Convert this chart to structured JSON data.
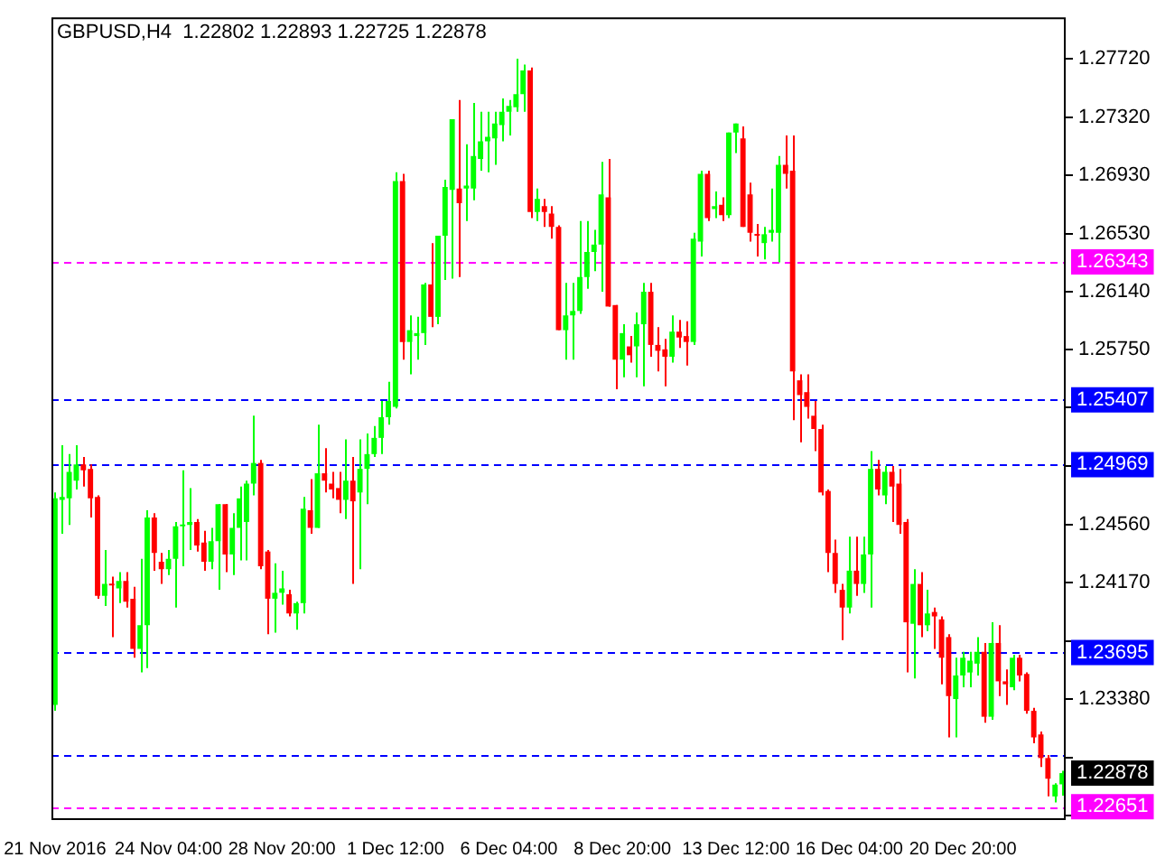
{
  "chart_data": {
    "type": "candlestick",
    "title": "GBPUSD,H4  1.22802 1.22893 1.22725 1.22878",
    "categories": [
      "21 Nov 2016",
      null,
      null,
      null,
      null,
      null,
      null,
      null,
      null,
      null,
      null,
      null,
      null,
      null,
      null,
      null,
      "24 Nov 04:00",
      null,
      null,
      null,
      null,
      null,
      null,
      null,
      null,
      null,
      null,
      null,
      null,
      null,
      null,
      null,
      "28 Nov 20:00",
      null,
      null,
      null,
      null,
      null,
      null,
      null,
      null,
      null,
      null,
      null,
      null,
      null,
      null,
      null,
      "1 Dec 12:00",
      null,
      null,
      null,
      null,
      null,
      null,
      null,
      null,
      null,
      null,
      null,
      null,
      null,
      null,
      null,
      "6 Dec 04:00",
      null,
      null,
      null,
      null,
      null,
      null,
      null,
      null,
      null,
      null,
      null,
      null,
      null,
      null,
      null,
      "8 Dec 20:00",
      null,
      null,
      null,
      null,
      null,
      null,
      null,
      null,
      null,
      null,
      null,
      null,
      null,
      null,
      null,
      "13 Dec 12:00",
      null,
      null,
      null,
      null,
      null,
      null,
      null,
      null,
      null,
      null,
      null,
      null,
      null,
      null,
      null,
      "16 Dec 04:00",
      null,
      null,
      null,
      null,
      null,
      null,
      null,
      null,
      null,
      null,
      null,
      null,
      null,
      null,
      null,
      "20 Dec 20:00",
      null,
      null,
      null,
      null,
      null,
      null,
      null,
      null,
      null,
      null,
      null,
      null,
      null,
      null
    ],
    "ohlc": [
      [
        1.2334,
        1.2478,
        1.233,
        1.2474
      ],
      [
        1.2473,
        1.251,
        1.245,
        1.2475
      ],
      [
        1.2474,
        1.2504,
        1.2456,
        1.2492
      ],
      [
        1.2486,
        1.251,
        1.248,
        1.2497
      ],
      [
        1.2497,
        1.2502,
        1.2482,
        1.2493
      ],
      [
        1.2494,
        1.2497,
        1.2461,
        1.2474
      ],
      [
        1.2475,
        1.2476,
        1.2406,
        1.2408
      ],
      [
        1.2408,
        1.2439,
        1.2401,
        1.2416
      ],
      [
        1.2416,
        1.2421,
        1.238,
        1.2415
      ],
      [
        1.2413,
        1.2424,
        1.2403,
        1.2418
      ],
      [
        1.2418,
        1.2424,
        1.24,
        1.2404
      ],
      [
        1.2406,
        1.2414,
        1.2366,
        1.2372
      ],
      [
        1.2372,
        1.2433,
        1.2356,
        1.2388
      ],
      [
        1.2388,
        1.2466,
        1.2359,
        1.2461
      ],
      [
        1.2461,
        1.2464,
        1.2425,
        1.2437
      ],
      [
        1.2431,
        1.2437,
        1.2416,
        1.2426
      ],
      [
        1.2426,
        1.2439,
        1.2422,
        1.2433
      ],
      [
        1.2433,
        1.2458,
        1.24,
        1.2455
      ],
      [
        1.2455,
        1.2493,
        1.2428,
        1.2456
      ],
      [
        1.2456,
        1.2481,
        1.2439,
        1.2458
      ],
      [
        1.2458,
        1.246,
        1.2438,
        1.2442
      ],
      [
        1.2444,
        1.2452,
        1.2425,
        1.2431
      ],
      [
        1.2431,
        1.2454,
        1.2426,
        1.2445
      ],
      [
        1.2445,
        1.247,
        1.2412,
        1.247
      ],
      [
        1.247,
        1.247,
        1.2424,
        1.2436
      ],
      [
        1.2436,
        1.2464,
        1.2422,
        1.2454
      ],
      [
        1.2454,
        1.2482,
        1.2432,
        1.2474
      ],
      [
        1.2458,
        1.2486,
        1.2432,
        1.2484
      ],
      [
        1.2484,
        1.253,
        1.2476,
        1.2498
      ],
      [
        1.2498,
        1.25,
        1.2426,
        1.2428
      ],
      [
        1.2438,
        1.2439,
        1.2382,
        1.2406
      ],
      [
        1.2406,
        1.243,
        1.2383,
        1.241
      ],
      [
        1.241,
        1.2425,
        1.2402,
        1.2413
      ],
      [
        1.2409,
        1.2412,
        1.2394,
        1.2396
      ],
      [
        1.2396,
        1.2404,
        1.2385,
        1.2403
      ],
      [
        1.2403,
        1.2475,
        1.2396,
        1.2467
      ],
      [
        1.2466,
        1.2487,
        1.245,
        1.2454
      ],
      [
        1.2454,
        1.2524,
        1.2454,
        1.2491
      ],
      [
        1.2491,
        1.2508,
        1.2478,
        1.2486
      ],
      [
        1.2484,
        1.2492,
        1.2474,
        1.248
      ],
      [
        1.2481,
        1.2492,
        1.2464,
        1.2473
      ],
      [
        1.2473,
        1.2514,
        1.246,
        1.2486
      ],
      [
        1.2486,
        1.2502,
        1.2416,
        1.2472
      ],
      [
        1.2478,
        1.2514,
        1.2426,
        1.2494
      ],
      [
        1.2494,
        1.2518,
        1.247,
        1.2504
      ],
      [
        1.2504,
        1.2523,
        1.2502,
        1.2515
      ],
      [
        1.2515,
        1.254,
        1.2504,
        1.2529
      ],
      [
        1.2529,
        1.2553,
        1.2524,
        1.254
      ],
      [
        1.2536,
        1.2695,
        1.2535,
        1.2689
      ],
      [
        1.2689,
        1.2694,
        1.2568,
        1.258
      ],
      [
        1.258,
        1.2598,
        1.2558,
        1.2588
      ],
      [
        1.2584,
        1.2597,
        1.2568,
        1.2586
      ],
      [
        1.2586,
        1.262,
        1.2578,
        1.2619
      ],
      [
        1.2619,
        1.2647,
        1.259,
        1.2597
      ],
      [
        1.2597,
        1.2652,
        1.2592,
        1.2652
      ],
      [
        1.2652,
        1.269,
        1.2622,
        1.2685
      ],
      [
        1.2683,
        1.2731,
        1.2623,
        1.2731
      ],
      [
        1.2684,
        1.2744,
        1.2624,
        1.2674
      ],
      [
        1.2684,
        1.2714,
        1.2662,
        1.2686
      ],
      [
        1.2684,
        1.2742,
        1.2676,
        1.2706
      ],
      [
        1.2704,
        1.2736,
        1.2696,
        1.2716
      ],
      [
        1.2716,
        1.2736,
        1.2695,
        1.2719
      ],
      [
        1.2718,
        1.2736,
        1.27,
        1.2728
      ],
      [
        1.2727,
        1.2745,
        1.2716,
        1.2736
      ],
      [
        1.2736,
        1.2744,
        1.272,
        1.274
      ],
      [
        1.2739,
        1.2772,
        1.2736,
        1.2748
      ],
      [
        1.2748,
        1.2768,
        1.2736,
        1.2764
      ],
      [
        1.2764,
        1.2766,
        1.2664,
        1.2668
      ],
      [
        1.2668,
        1.2684,
        1.2662,
        1.2677
      ],
      [
        1.2672,
        1.2677,
        1.2658,
        1.2668
      ],
      [
        1.2667,
        1.2672,
        1.265,
        1.2658
      ],
      [
        1.2658,
        1.2659,
        1.2588,
        1.2588
      ],
      [
        1.2588,
        1.262,
        1.2568,
        1.2598
      ],
      [
        1.2598,
        1.262,
        1.2568,
        1.2601
      ],
      [
        1.2601,
        1.2662,
        1.2599,
        1.2624
      ],
      [
        1.2624,
        1.2662,
        1.2616,
        1.2641
      ],
      [
        1.2641,
        1.2656,
        1.2628,
        1.2646
      ],
      [
        1.2646,
        1.2702,
        1.2614,
        1.268
      ],
      [
        1.2678,
        1.2704,
        1.2604,
        1.2604
      ],
      [
        1.2605,
        1.2605,
        1.2548,
        1.2568
      ],
      [
        1.2568,
        1.2592,
        1.2556,
        1.2586
      ],
      [
        1.2577,
        1.2584,
        1.2566,
        1.2571
      ],
      [
        1.2577,
        1.26,
        1.2556,
        1.2592
      ],
      [
        1.2592,
        1.262,
        1.255,
        1.2614
      ],
      [
        1.2614,
        1.262,
        1.257,
        1.2578
      ],
      [
        1.2578,
        1.259,
        1.256,
        1.2574
      ],
      [
        1.2575,
        1.2582,
        1.255,
        1.257
      ],
      [
        1.257,
        1.2598,
        1.2566,
        1.2587
      ],
      [
        1.2587,
        1.2595,
        1.2576,
        1.2583
      ],
      [
        1.2584,
        1.2594,
        1.2564,
        1.258
      ],
      [
        1.258,
        1.2654,
        1.2578,
        1.265
      ],
      [
        1.2648,
        1.2696,
        1.2638,
        1.2694
      ],
      [
        1.2694,
        1.2696,
        1.2662,
        1.2664
      ],
      [
        1.267,
        1.2682,
        1.2664,
        1.2672
      ],
      [
        1.2673,
        1.2678,
        1.2662,
        1.2666
      ],
      [
        1.2666,
        1.2722,
        1.2664,
        1.2722
      ],
      [
        1.2722,
        1.2728,
        1.2708,
        1.2728
      ],
      [
        1.2718,
        1.2726,
        1.2658,
        1.2658
      ],
      [
        1.268,
        1.2688,
        1.2648,
        1.2654
      ],
      [
        1.2653,
        1.266,
        1.2638,
        1.2652
      ],
      [
        1.2647,
        1.2658,
        1.2636,
        1.2653
      ],
      [
        1.2654,
        1.2684,
        1.2648,
        1.2656
      ],
      [
        1.2654,
        1.2706,
        1.2634,
        1.27
      ],
      [
        1.27,
        1.272,
        1.2684,
        1.2694
      ],
      [
        1.2696,
        1.272,
        1.2527,
        1.256
      ],
      [
        1.2554,
        1.2558,
        1.2512,
        1.2544
      ],
      [
        1.2546,
        1.2558,
        1.2528,
        1.2536
      ],
      [
        1.253,
        1.254,
        1.2506,
        1.2521
      ],
      [
        1.2521,
        1.2524,
        1.2476,
        1.2478
      ],
      [
        1.2479,
        1.248,
        1.2424,
        1.2437
      ],
      [
        1.2437,
        1.2446,
        1.241,
        1.2416
      ],
      [
        1.2412,
        1.2416,
        1.2378,
        1.24
      ],
      [
        1.24,
        1.2448,
        1.2396,
        1.2425
      ],
      [
        1.2425,
        1.2448,
        1.2408,
        1.2416
      ],
      [
        1.2416,
        1.2448,
        1.241,
        1.2436
      ],
      [
        1.2436,
        1.2506,
        1.24,
        1.2494
      ],
      [
        1.2494,
        1.25,
        1.2476,
        1.248
      ],
      [
        1.2476,
        1.2496,
        1.247,
        1.2492
      ],
      [
        1.2492,
        1.2496,
        1.2458,
        1.2482
      ],
      [
        1.2484,
        1.2494,
        1.245,
        1.2456
      ],
      [
        1.2458,
        1.246,
        1.2356,
        1.239
      ],
      [
        1.2389,
        1.2426,
        1.2352,
        1.2416
      ],
      [
        1.2416,
        1.2424,
        1.238,
        1.2388
      ],
      [
        1.2388,
        1.2412,
        1.2384,
        1.2396
      ],
      [
        1.2397,
        1.24,
        1.2372,
        1.2394
      ],
      [
        1.2392,
        1.2394,
        1.2348,
        1.2366
      ],
      [
        1.238,
        1.2382,
        1.2312,
        1.234
      ],
      [
        1.2338,
        1.2366,
        1.2312,
        1.2354
      ],
      [
        1.2354,
        1.237,
        1.2346,
        1.2366
      ],
      [
        1.2356,
        1.237,
        1.2346,
        1.2364
      ],
      [
        1.2362,
        1.238,
        1.2354,
        1.237
      ],
      [
        1.237,
        1.2376,
        1.2322,
        1.2326
      ],
      [
        1.2326,
        1.239,
        1.2324,
        1.2376
      ],
      [
        1.2376,
        1.2388,
        1.234,
        1.235
      ],
      [
        1.235,
        1.2358,
        1.2334,
        1.2348
      ],
      [
        1.2346,
        1.2368,
        1.2344,
        1.2366
      ],
      [
        1.2366,
        1.2368,
        1.235,
        1.2354
      ],
      [
        1.2355,
        1.2356,
        1.2328,
        1.233
      ],
      [
        1.233,
        1.2332,
        1.2308,
        1.2312
      ],
      [
        1.2314,
        1.2316,
        1.2292,
        1.2298
      ],
      [
        1.2298,
        1.23,
        1.2272,
        1.2284
      ],
      [
        1.2272,
        1.2281,
        1.2268,
        1.228
      ],
      [
        1.22802,
        1.22893,
        1.22725,
        1.22878
      ]
    ],
    "colors": [
      "#00ff00",
      "#00ff00",
      "#00ff00",
      "#00ff00",
      "#ff0000",
      "#ff0000",
      "#ff0000",
      "#00ff00",
      "#ff0000",
      "#00ff00",
      "#ff0000",
      "#ff0000",
      "#00ff00",
      "#00ff00",
      "#ff0000",
      "#ff0000",
      "#00ff00",
      "#00ff00",
      "#00ff00",
      "#00ff00",
      "#ff0000",
      "#ff0000",
      "#00ff00",
      "#00ff00",
      "#ff0000",
      "#00ff00",
      "#00ff00",
      "#00ff00",
      "#00ff00",
      "#ff0000",
      "#ff0000",
      "#00ff00",
      "#00ff00",
      "#ff0000",
      "#00ff00",
      "#00ff00",
      "#ff0000",
      "#00ff00",
      "#ff0000",
      "#ff0000",
      "#ff0000",
      "#00ff00",
      "#ff0000",
      "#00ff00",
      "#00ff00",
      "#00ff00",
      "#00ff00",
      "#00ff00",
      "#00ff00",
      "#ff0000",
      "#00ff00",
      "#00ff00",
      "#00ff00",
      "#ff0000",
      "#00ff00",
      "#00ff00",
      "#00ff00",
      "#ff0000",
      "#00ff00",
      "#00ff00",
      "#00ff00",
      "#00ff00",
      "#00ff00",
      "#00ff00",
      "#00ff00",
      "#00ff00",
      "#00ff00",
      "#ff0000",
      "#00ff00",
      "#ff0000",
      "#ff0000",
      "#ff0000",
      "#00ff00",
      "#00ff00",
      "#00ff00",
      "#00ff00",
      "#00ff00",
      "#00ff00",
      "#ff0000",
      "#ff0000",
      "#00ff00",
      "#ff0000",
      "#00ff00",
      "#00ff00",
      "#ff0000",
      "#ff0000",
      "#ff0000",
      "#00ff00",
      "#ff0000",
      "#ff0000",
      "#00ff00",
      "#00ff00",
      "#ff0000",
      "#00ff00",
      "#ff0000",
      "#00ff00",
      "#00ff00",
      "#ff0000",
      "#ff0000",
      "#ff0000",
      "#00ff00",
      "#00ff00",
      "#00ff00",
      "#ff0000",
      "#ff0000",
      "#ff0000",
      "#ff0000",
      "#ff0000",
      "#ff0000",
      "#ff0000",
      "#ff0000",
      "#ff0000",
      "#00ff00",
      "#ff0000",
      "#00ff00",
      "#00ff00",
      "#ff0000",
      "#00ff00",
      "#ff0000",
      "#ff0000",
      "#ff0000",
      "#00ff00",
      "#ff0000",
      "#00ff00",
      "#ff0000",
      "#ff0000",
      "#ff0000",
      "#00ff00",
      "#00ff00",
      "#00ff00",
      "#00ff00",
      "#ff0000",
      "#00ff00",
      "#ff0000",
      "#ff0000",
      "#00ff00",
      "#ff0000",
      "#ff0000",
      "#ff0000",
      "#ff0000",
      "#ff0000",
      "#00ff00",
      "#00ff00"
    ],
    "ylim": [
      1.2256,
      1.28
    ],
    "yticks": [
      {
        "value": 1.2772,
        "label": "1.27720"
      },
      {
        "value": 1.2732,
        "label": "1.27320"
      },
      {
        "value": 1.2693,
        "label": "1.26930"
      },
      {
        "value": 1.2653,
        "label": "1.26530"
      },
      {
        "value": 1.2614,
        "label": "1.26140"
      },
      {
        "value": 1.2575,
        "label": "1.25750"
      },
      {
        "value": 1.2536,
        "label": null
      },
      {
        "value": 1.2496,
        "label": null
      },
      {
        "value": 1.2456,
        "label": "1.24560"
      },
      {
        "value": 1.2417,
        "label": "1.24170"
      },
      {
        "value": 1.2377,
        "label": null
      },
      {
        "value": 1.2338,
        "label": "1.23380"
      },
      {
        "value": 1.2298,
        "label": null
      },
      {
        "value": 1.2259,
        "label": null
      }
    ],
    "ref_lines": [
      {
        "axis": "y",
        "value": 1.26343,
        "label": "1.26343",
        "color": "#ff00ff",
        "line_style": "dashed"
      },
      {
        "axis": "y",
        "value": 1.25407,
        "label": "1.25407",
        "color": "#0000ff",
        "line_style": "dashed"
      },
      {
        "axis": "y",
        "value": 1.24969,
        "label": "1.24969",
        "color": "#0000ff",
        "line_style": "dashed"
      },
      {
        "axis": "y",
        "value": 1.23695,
        "label": "1.23695",
        "color": "#0000ff",
        "line_style": "dashed"
      },
      {
        "axis": "y",
        "value": 1.23,
        "color": "#0000ff",
        "line_style": "dashed"
      },
      {
        "axis": "y",
        "value": 1.22651,
        "label": "1.22651",
        "color": "#ff00ff",
        "line_style": "dashed"
      }
    ],
    "annotations": [
      "1.22878"
    ],
    "legend": false
  }
}
